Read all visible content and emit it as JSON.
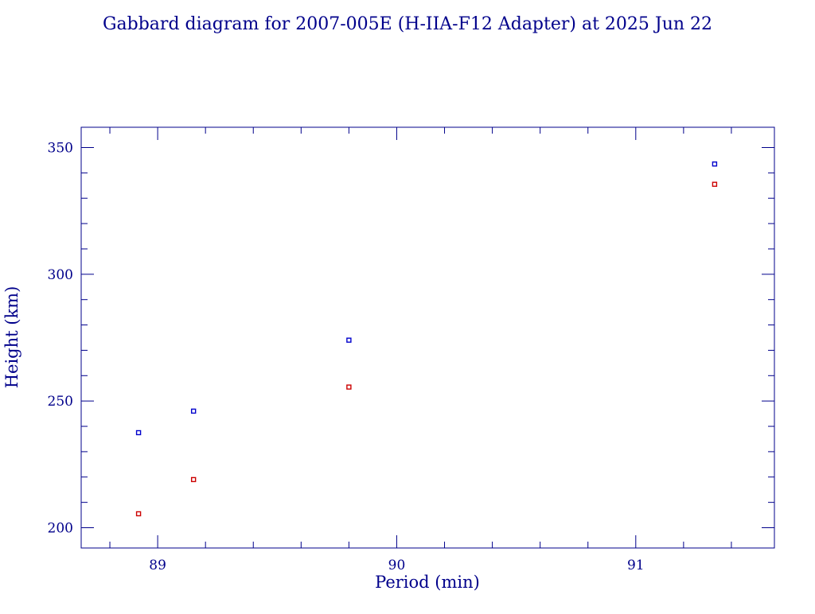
{
  "chart_data": {
    "type": "scatter",
    "title": "Gabbard diagram for 2007-005E (H-IIA-F12 Adapter) at 2025 Jun 22",
    "xlabel": "Period (min)",
    "ylabel": "Height (km)",
    "xlim": [
      88.68,
      91.58
    ],
    "ylim": [
      192,
      358
    ],
    "x_major_ticks": [
      89,
      90,
      91
    ],
    "x_minor_step": 0.2,
    "y_major_ticks": [
      200,
      250,
      300,
      350
    ],
    "y_minor_step": 10,
    "grid": false,
    "legend": "none",
    "colors": {
      "axes": "#00008b",
      "text": "#00008b",
      "apogee": "#0000cc",
      "perigee": "#cc0000"
    },
    "series": [
      {
        "role": "apogee",
        "points": [
          {
            "x": 88.92,
            "y": 237.5
          },
          {
            "x": 89.15,
            "y": 246.0
          },
          {
            "x": 89.8,
            "y": 274.0
          },
          {
            "x": 91.33,
            "y": 343.5
          }
        ]
      },
      {
        "role": "perigee",
        "points": [
          {
            "x": 88.92,
            "y": 205.5
          },
          {
            "x": 89.15,
            "y": 219.0
          },
          {
            "x": 89.8,
            "y": 255.5
          },
          {
            "x": 91.33,
            "y": 335.5
          }
        ]
      }
    ]
  }
}
